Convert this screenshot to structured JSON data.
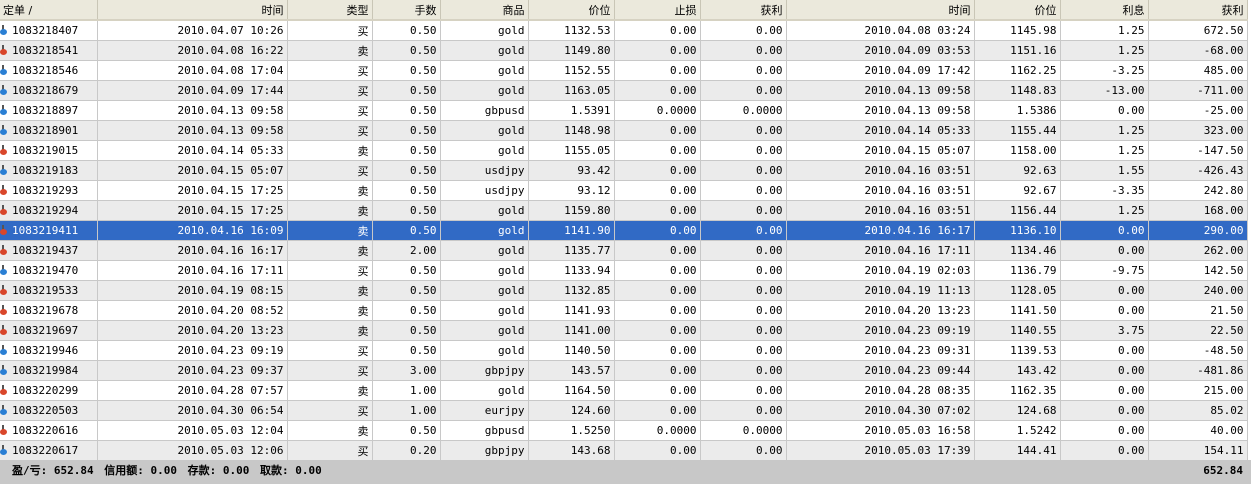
{
  "colors": {
    "buy_icon": "#2a7fd4",
    "sell_icon": "#d9462b",
    "selected_row": "#316ac5"
  },
  "columns": [
    "定单  /",
    "时间",
    "类型",
    "手数",
    "商品",
    "价位",
    "止损",
    "获利",
    "时间",
    "价位",
    "利息",
    "获利"
  ],
  "selected_row": 10,
  "rows": [
    [
      "1083218407",
      "2010.04.07 10:26",
      "买",
      "0.50",
      "gold",
      "1132.53",
      "0.00",
      "0.00",
      "2010.04.08 03:24",
      "1145.98",
      "1.25",
      "672.50"
    ],
    [
      "1083218541",
      "2010.04.08 16:22",
      "卖",
      "0.50",
      "gold",
      "1149.80",
      "0.00",
      "0.00",
      "2010.04.09 03:53",
      "1151.16",
      "1.25",
      "-68.00"
    ],
    [
      "1083218546",
      "2010.04.08 17:04",
      "买",
      "0.50",
      "gold",
      "1152.55",
      "0.00",
      "0.00",
      "2010.04.09 17:42",
      "1162.25",
      "-3.25",
      "485.00"
    ],
    [
      "1083218679",
      "2010.04.09 17:44",
      "买",
      "0.50",
      "gold",
      "1163.05",
      "0.00",
      "0.00",
      "2010.04.13 09:58",
      "1148.83",
      "-13.00",
      "-711.00"
    ],
    [
      "1083218897",
      "2010.04.13 09:58",
      "买",
      "0.50",
      "gbpusd",
      "1.5391",
      "0.0000",
      "0.0000",
      "2010.04.13 09:58",
      "1.5386",
      "0.00",
      "-25.00"
    ],
    [
      "1083218901",
      "2010.04.13 09:58",
      "买",
      "0.50",
      "gold",
      "1148.98",
      "0.00",
      "0.00",
      "2010.04.14 05:33",
      "1155.44",
      "1.25",
      "323.00"
    ],
    [
      "1083219015",
      "2010.04.14 05:33",
      "卖",
      "0.50",
      "gold",
      "1155.05",
      "0.00",
      "0.00",
      "2010.04.15 05:07",
      "1158.00",
      "1.25",
      "-147.50"
    ],
    [
      "1083219183",
      "2010.04.15 05:07",
      "买",
      "0.50",
      "usdjpy",
      "93.42",
      "0.00",
      "0.00",
      "2010.04.16 03:51",
      "92.63",
      "1.55",
      "-426.43"
    ],
    [
      "1083219293",
      "2010.04.15 17:25",
      "卖",
      "0.50",
      "usdjpy",
      "93.12",
      "0.00",
      "0.00",
      "2010.04.16 03:51",
      "92.67",
      "-3.35",
      "242.80"
    ],
    [
      "1083219294",
      "2010.04.15 17:25",
      "卖",
      "0.50",
      "gold",
      "1159.80",
      "0.00",
      "0.00",
      "2010.04.16 03:51",
      "1156.44",
      "1.25",
      "168.00"
    ],
    [
      "1083219411",
      "2010.04.16 16:09",
      "卖",
      "0.50",
      "gold",
      "1141.90",
      "0.00",
      "0.00",
      "2010.04.16 16:17",
      "1136.10",
      "0.00",
      "290.00"
    ],
    [
      "1083219437",
      "2010.04.16 16:17",
      "卖",
      "2.00",
      "gold",
      "1135.77",
      "0.00",
      "0.00",
      "2010.04.16 17:11",
      "1134.46",
      "0.00",
      "262.00"
    ],
    [
      "1083219470",
      "2010.04.16 17:11",
      "买",
      "0.50",
      "gold",
      "1133.94",
      "0.00",
      "0.00",
      "2010.04.19 02:03",
      "1136.79",
      "-9.75",
      "142.50"
    ],
    [
      "1083219533",
      "2010.04.19 08:15",
      "卖",
      "0.50",
      "gold",
      "1132.85",
      "0.00",
      "0.00",
      "2010.04.19 11:13",
      "1128.05",
      "0.00",
      "240.00"
    ],
    [
      "1083219678",
      "2010.04.20 08:52",
      "卖",
      "0.50",
      "gold",
      "1141.93",
      "0.00",
      "0.00",
      "2010.04.20 13:23",
      "1141.50",
      "0.00",
      "21.50"
    ],
    [
      "1083219697",
      "2010.04.20 13:23",
      "卖",
      "0.50",
      "gold",
      "1141.00",
      "0.00",
      "0.00",
      "2010.04.23 09:19",
      "1140.55",
      "3.75",
      "22.50"
    ],
    [
      "1083219946",
      "2010.04.23 09:19",
      "买",
      "0.50",
      "gold",
      "1140.50",
      "0.00",
      "0.00",
      "2010.04.23 09:31",
      "1139.53",
      "0.00",
      "-48.50"
    ],
    [
      "1083219984",
      "2010.04.23 09:37",
      "买",
      "3.00",
      "gbpjpy",
      "143.57",
      "0.00",
      "0.00",
      "2010.04.23 09:44",
      "143.42",
      "0.00",
      "-481.86"
    ],
    [
      "1083220299",
      "2010.04.28 07:57",
      "卖",
      "1.00",
      "gold",
      "1164.50",
      "0.00",
      "0.00",
      "2010.04.28 08:35",
      "1162.35",
      "0.00",
      "215.00"
    ],
    [
      "1083220503",
      "2010.04.30 06:54",
      "买",
      "1.00",
      "eurjpy",
      "124.60",
      "0.00",
      "0.00",
      "2010.04.30 07:02",
      "124.68",
      "0.00",
      "85.02"
    ],
    [
      "1083220616",
      "2010.05.03 12:04",
      "卖",
      "0.50",
      "gbpusd",
      "1.5250",
      "0.0000",
      "0.0000",
      "2010.05.03 16:58",
      "1.5242",
      "0.00",
      "40.00"
    ],
    [
      "1083220617",
      "2010.05.03 12:06",
      "买",
      "0.20",
      "gbpjpy",
      "143.68",
      "0.00",
      "0.00",
      "2010.05.03 17:39",
      "144.41",
      "0.00",
      "154.11"
    ]
  ],
  "footer": {
    "pl": "盈/亏: 652.84",
    "credit": "信用额: 0.00",
    "deposit": "存款: 0.00",
    "withdrawal": "取款: 0.00",
    "total": "652.84"
  }
}
